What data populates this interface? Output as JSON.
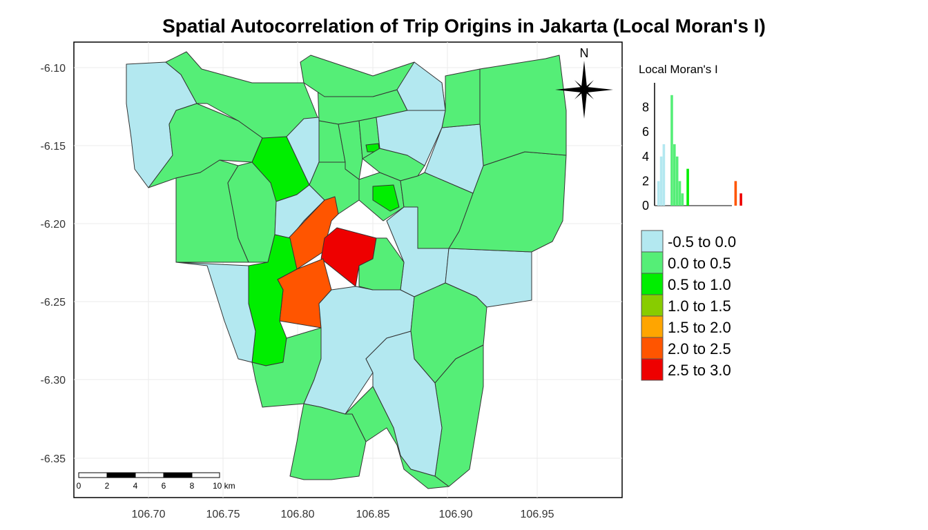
{
  "title": "Spatial Autocorrelation of Trip Origins in Jakarta (Local Moran's I)",
  "axes": {
    "x_ticks": [
      "106.70",
      "106.75",
      "106.80",
      "106.85",
      "106.90",
      "106.95"
    ],
    "y_ticks": [
      "-6.10",
      "-6.15",
      "-6.20",
      "-6.25",
      "-6.30",
      "-6.35"
    ]
  },
  "compass": {
    "label": "N"
  },
  "scalebar": {
    "labels": [
      "0",
      "2",
      "4",
      "6",
      "8",
      "10 km"
    ]
  },
  "histogram": {
    "title": "Local Moran's I",
    "y_ticks": [
      "0",
      "2",
      "4",
      "6",
      "8"
    ],
    "bars": [
      {
        "x": -0.45,
        "count": 2,
        "color": "#b3e8f0"
      },
      {
        "x": -0.35,
        "count": 4,
        "color": "#b3e8f0"
      },
      {
        "x": -0.25,
        "count": 5,
        "color": "#b3e8f0"
      },
      {
        "x": 0.05,
        "count": 9,
        "color": "#55ee77"
      },
      {
        "x": 0.15,
        "count": 5,
        "color": "#55ee77"
      },
      {
        "x": 0.25,
        "count": 4,
        "color": "#55ee77"
      },
      {
        "x": 0.35,
        "count": 2,
        "color": "#55ee77"
      },
      {
        "x": 0.45,
        "count": 1,
        "color": "#55ee77"
      },
      {
        "x": 0.65,
        "count": 3,
        "color": "#00ee00"
      },
      {
        "x": 2.45,
        "count": 2,
        "color": "#ff5500"
      },
      {
        "x": 2.65,
        "count": 1,
        "color": "#ee0000"
      }
    ]
  },
  "legend": {
    "items": [
      {
        "label": "-0.5 to 0.0",
        "color": "#b3e8f0"
      },
      {
        "label": "0.0 to 0.5",
        "color": "#55ee77"
      },
      {
        "label": "0.5 to 1.0",
        "color": "#00ee00"
      },
      {
        "label": "1.0 to 1.5",
        "color": "#88cc00"
      },
      {
        "label": "1.5 to 2.0",
        "color": "#ffa500"
      },
      {
        "label": "2.0 to 2.5",
        "color": "#ff5500"
      },
      {
        "label": "2.5 to 3.0",
        "color": "#ee0000"
      }
    ]
  },
  "colors": {
    "class_-0.5_0.0": "#b3e8f0",
    "class_0.0_0.5": "#55ee77",
    "class_0.5_1.0": "#00ee00",
    "class_2.0_2.5": "#ff5500",
    "class_2.5_3.0": "#ee0000"
  }
}
